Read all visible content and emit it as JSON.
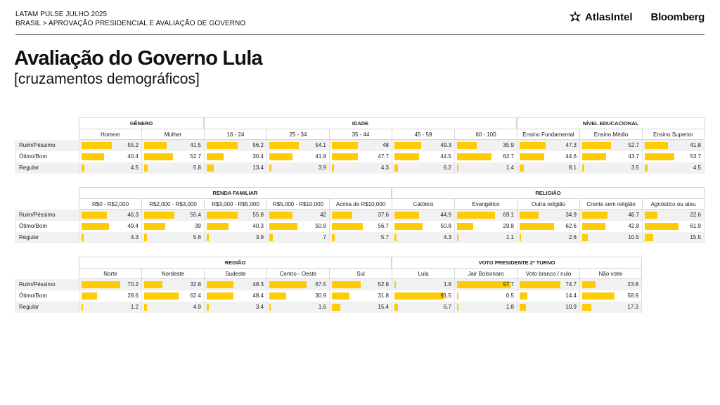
{
  "header": {
    "kicker": "LATAM PULSE JULHO 2025",
    "breadcrumb": "BRASIL > APROVAÇÃO PRESIDENCIAL E AVALIAÇÃO DE GOVERNO",
    "logo_atlas": "AtlasIntel",
    "logo_bloomberg": "Bloomberg"
  },
  "title": "Avaliação do Governo Lula",
  "subtitle": "[cruzamentos demográficos]",
  "chart_data": [
    {
      "type": "table",
      "groups": [
        {
          "label": "GÊNERO",
          "span": 2
        },
        {
          "label": "IDADE",
          "span": 5
        },
        {
          "label": "NÍVEL EDUCACIONAL",
          "span": 3
        }
      ],
      "columns": [
        "Homem",
        "Mulher",
        "16 - 24",
        "25 - 34",
        "35 - 44",
        "45 - 59",
        "60 - 100",
        "Ensino Fundamental",
        "Ensino Médio",
        "Ensino Superior"
      ],
      "rows": [
        {
          "label": "Ruim/Péssimo",
          "values": [
            55.2,
            41.5,
            56.2,
            54.1,
            48,
            49.3,
            35.9,
            47.3,
            52.7,
            41.8
          ]
        },
        {
          "label": "Ótimo/Bom",
          "values": [
            40.4,
            52.7,
            30.4,
            41.9,
            47.7,
            44.5,
            62.7,
            44.6,
            43.7,
            53.7
          ]
        },
        {
          "label": "Regular",
          "values": [
            4.5,
            5.8,
            13.4,
            3.9,
            4.3,
            6.2,
            1.4,
            8.1,
            3.5,
            4.5
          ]
        }
      ]
    },
    {
      "type": "table",
      "groups": [
        {
          "label": "RENDA FAMILIAR",
          "span": 5
        },
        {
          "label": "RELIGIÃO",
          "span": 5
        }
      ],
      "columns": [
        "R$0 - R$2,000",
        "R$2,000 - R$3,000",
        "R$3,000 - R$5,000",
        "R$5,000 - R$10,000",
        "Acima de R$10,000",
        "Católico",
        "Evangélico",
        "Outra religião",
        "Crente sem religião",
        "Agnóstico ou ateu"
      ],
      "rows": [
        {
          "label": "Ruim/Péssimo",
          "values": [
            46.3,
            55.4,
            55.8,
            42,
            37.6,
            44.9,
            69.1,
            34.9,
            46.7,
            22.6
          ]
        },
        {
          "label": "Ótimo/Bom",
          "values": [
            49.4,
            39,
            40.3,
            50.9,
            56.7,
            50.8,
            29.8,
            62.6,
            42.8,
            61.9
          ]
        },
        {
          "label": "Regular",
          "values": [
            4.3,
            5.6,
            3.9,
            7,
            5.7,
            4.3,
            1.1,
            2.6,
            10.5,
            15.5
          ]
        }
      ]
    },
    {
      "type": "table",
      "groups": [
        {
          "label": "REGIÃO",
          "span": 5
        },
        {
          "label": "VOTO PRESIDENTE 2º TURNO",
          "span": 4
        }
      ],
      "columns": [
        "Norte",
        "Nordeste",
        "Sudeste",
        "Centro - Oeste",
        "Sul",
        "Lula",
        "Jair Bolsonaro",
        "Voto branco / nulo",
        "Não votei"
      ],
      "rows": [
        {
          "label": "Ruim/Péssimo",
          "values": [
            70.2,
            32.8,
            48.3,
            67.5,
            52.8,
            1.8,
            97.7,
            74.7,
            23.8
          ]
        },
        {
          "label": "Ótimo/Bom",
          "values": [
            28.6,
            62.4,
            48.4,
            30.9,
            31.8,
            91.5,
            0.5,
            14.4,
            58.9
          ]
        },
        {
          "label": "Regular",
          "values": [
            1.2,
            4.9,
            3.4,
            1.6,
            15.4,
            6.7,
            1.8,
            10.9,
            17.3
          ]
        }
      ]
    }
  ]
}
